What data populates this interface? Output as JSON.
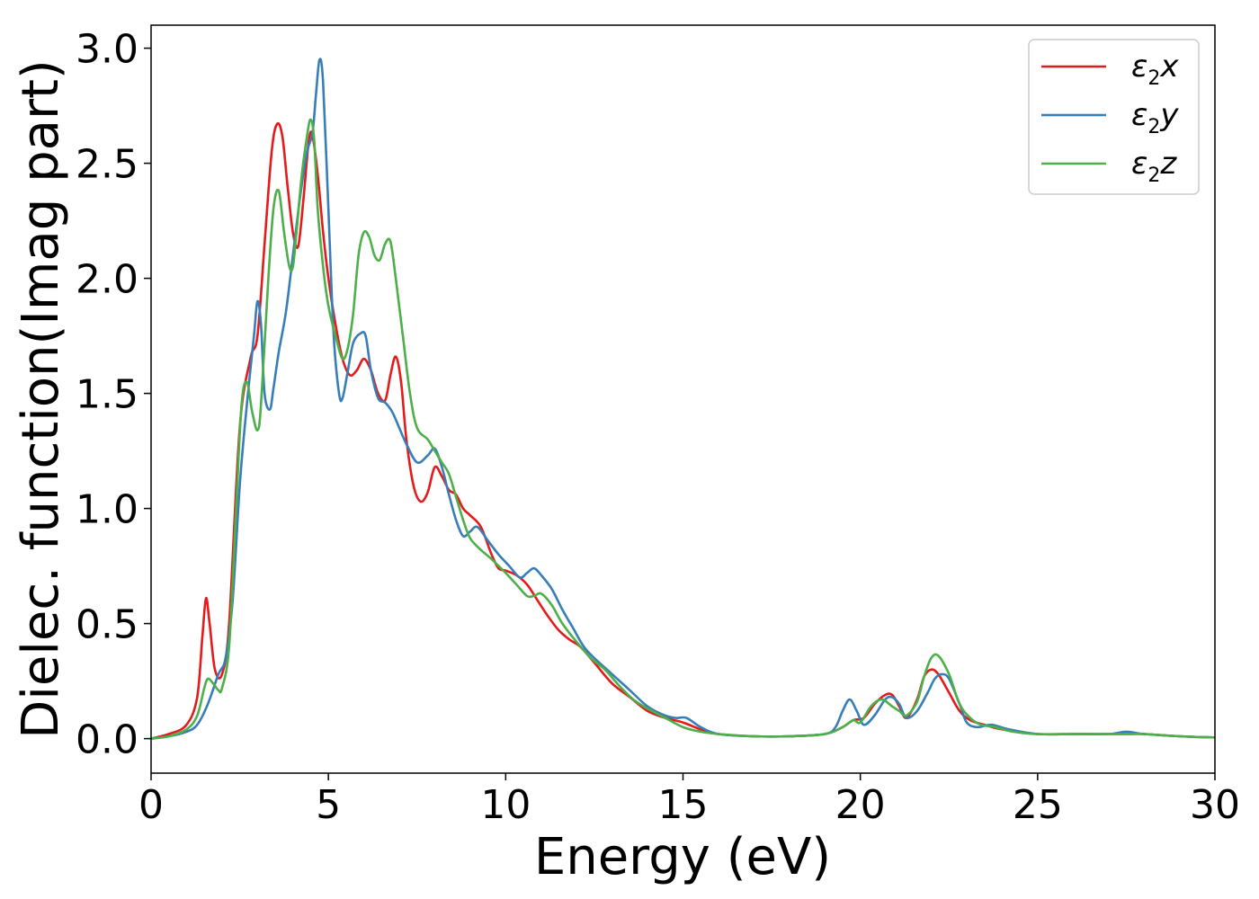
{
  "chart_data": {
    "type": "line",
    "title": "",
    "xlabel": "Energy (eV)",
    "ylabel": "Dielec. function(Imag part)",
    "xlim": [
      0,
      30
    ],
    "ylim": [
      -0.15,
      3.1
    ],
    "xticks": [
      "0",
      "5",
      "10",
      "15",
      "20",
      "25",
      "30"
    ],
    "yticks": [
      "0.0",
      "0.5",
      "1.0",
      "1.5",
      "2.0",
      "2.5",
      "3.0"
    ],
    "grid": false,
    "legend_position": "top-right",
    "series": [
      {
        "name": "ε2x",
        "legend": {
          "base": "ε",
          "sub": "2",
          "suffix": "x"
        },
        "color": "#e41a1c",
        "x": [
          0,
          0.5,
          1.0,
          1.3,
          1.45,
          1.55,
          1.65,
          1.8,
          2.0,
          2.2,
          2.5,
          2.8,
          3.0,
          3.2,
          3.4,
          3.55,
          3.7,
          3.85,
          4.0,
          4.15,
          4.3,
          4.45,
          4.55,
          4.7,
          4.85,
          5.0,
          5.2,
          5.4,
          5.6,
          5.8,
          6.0,
          6.2,
          6.4,
          6.6,
          6.75,
          6.9,
          7.05,
          7.2,
          7.4,
          7.6,
          7.8,
          8.0,
          8.2,
          8.4,
          8.6,
          8.8,
          9.0,
          9.3,
          9.6,
          9.8,
          10.0,
          10.3,
          10.6,
          10.9,
          11.2,
          11.5,
          11.8,
          12.1,
          12.5,
          13.0,
          13.5,
          14.0,
          14.5,
          15.0,
          15.5,
          16.0,
          17.0,
          18.0,
          19.0,
          19.5,
          19.8,
          20.1,
          20.4,
          20.7,
          20.9,
          21.1,
          21.3,
          21.6,
          21.8,
          22.0,
          22.2,
          22.5,
          22.8,
          23.1,
          23.5,
          24.0,
          25.0,
          26.0,
          27.0,
          27.5,
          28.0,
          29.0,
          30.0
        ],
        "values": [
          0.0,
          0.02,
          0.06,
          0.18,
          0.45,
          0.61,
          0.5,
          0.3,
          0.28,
          0.5,
          1.35,
          1.65,
          1.75,
          2.15,
          2.55,
          2.67,
          2.62,
          2.4,
          2.2,
          2.14,
          2.35,
          2.6,
          2.62,
          2.45,
          2.2,
          2.0,
          1.8,
          1.65,
          1.58,
          1.6,
          1.65,
          1.6,
          1.5,
          1.47,
          1.58,
          1.66,
          1.55,
          1.3,
          1.1,
          1.03,
          1.07,
          1.18,
          1.14,
          1.08,
          1.06,
          1.0,
          0.97,
          0.92,
          0.8,
          0.74,
          0.73,
          0.71,
          0.67,
          0.6,
          0.53,
          0.47,
          0.43,
          0.4,
          0.33,
          0.24,
          0.18,
          0.12,
          0.09,
          0.07,
          0.04,
          0.02,
          0.01,
          0.01,
          0.02,
          0.05,
          0.08,
          0.09,
          0.15,
          0.19,
          0.19,
          0.14,
          0.09,
          0.17,
          0.27,
          0.3,
          0.28,
          0.2,
          0.12,
          0.08,
          0.06,
          0.04,
          0.02,
          0.02,
          0.02,
          0.02,
          0.02,
          0.01,
          0.005
        ]
      },
      {
        "name": "ε2y",
        "legend": {
          "base": "ε",
          "sub": "2",
          "suffix": "y"
        },
        "color": "#377eb8",
        "x": [
          0,
          0.5,
          1.0,
          1.3,
          1.6,
          1.9,
          2.1,
          2.3,
          2.5,
          2.7,
          2.9,
          3.0,
          3.1,
          3.2,
          3.35,
          3.45,
          3.6,
          3.8,
          4.0,
          4.2,
          4.4,
          4.55,
          4.65,
          4.75,
          4.85,
          5.0,
          5.15,
          5.3,
          5.4,
          5.55,
          5.7,
          5.9,
          6.05,
          6.2,
          6.4,
          6.6,
          6.8,
          7.0,
          7.2,
          7.5,
          7.8,
          8.0,
          8.2,
          8.4,
          8.6,
          8.8,
          9.0,
          9.2,
          9.5,
          9.8,
          10.1,
          10.4,
          10.6,
          10.8,
          11.0,
          11.3,
          11.6,
          11.9,
          12.2,
          12.5,
          13.0,
          13.5,
          14.0,
          14.5,
          14.8,
          15.1,
          15.5,
          16.0,
          17.0,
          18.0,
          19.0,
          19.3,
          19.5,
          19.7,
          19.9,
          20.1,
          20.4,
          20.7,
          20.9,
          21.1,
          21.3,
          21.6,
          21.9,
          22.1,
          22.3,
          22.5,
          22.8,
          23.0,
          23.3,
          23.7,
          24.2,
          25.0,
          26.0,
          27.0,
          27.5,
          28.0,
          29.0,
          30.0
        ],
        "values": [
          0.0,
          0.01,
          0.03,
          0.06,
          0.15,
          0.28,
          0.35,
          0.6,
          1.1,
          1.45,
          1.75,
          1.9,
          1.8,
          1.5,
          1.43,
          1.52,
          1.68,
          1.85,
          2.1,
          2.35,
          2.55,
          2.63,
          2.8,
          2.95,
          2.85,
          2.3,
          1.75,
          1.5,
          1.48,
          1.6,
          1.72,
          1.76,
          1.75,
          1.6,
          1.48,
          1.46,
          1.42,
          1.35,
          1.28,
          1.2,
          1.23,
          1.26,
          1.18,
          1.06,
          0.95,
          0.88,
          0.9,
          0.92,
          0.86,
          0.8,
          0.75,
          0.7,
          0.72,
          0.74,
          0.71,
          0.65,
          0.56,
          0.48,
          0.4,
          0.35,
          0.28,
          0.21,
          0.14,
          0.1,
          0.09,
          0.09,
          0.05,
          0.02,
          0.01,
          0.01,
          0.02,
          0.05,
          0.12,
          0.17,
          0.12,
          0.06,
          0.1,
          0.17,
          0.18,
          0.15,
          0.09,
          0.12,
          0.2,
          0.26,
          0.28,
          0.26,
          0.15,
          0.07,
          0.05,
          0.06,
          0.04,
          0.02,
          0.02,
          0.02,
          0.03,
          0.02,
          0.01,
          0.005
        ]
      },
      {
        "name": "ε2z",
        "legend": {
          "base": "ε",
          "sub": "2",
          "suffix": "z"
        },
        "color": "#4daf4a",
        "x": [
          0,
          0.5,
          1.0,
          1.3,
          1.5,
          1.6,
          1.75,
          1.9,
          2.0,
          2.2,
          2.4,
          2.55,
          2.7,
          2.85,
          3.0,
          3.1,
          3.3,
          3.45,
          3.6,
          3.75,
          3.9,
          4.0,
          4.1,
          4.25,
          4.4,
          4.5,
          4.6,
          4.7,
          4.85,
          5.0,
          5.2,
          5.4,
          5.55,
          5.7,
          5.85,
          6.0,
          6.15,
          6.3,
          6.45,
          6.6,
          6.75,
          6.9,
          7.1,
          7.3,
          7.5,
          7.8,
          8.0,
          8.2,
          8.4,
          8.6,
          8.8,
          9.0,
          9.3,
          9.6,
          10.0,
          10.3,
          10.6,
          10.8,
          11.0,
          11.3,
          11.6,
          12.0,
          12.4,
          12.8,
          13.2,
          13.6,
          14.0,
          14.5,
          15.0,
          15.5,
          16.0,
          17.0,
          18.0,
          19.0,
          19.5,
          19.8,
          20.0,
          20.3,
          20.6,
          20.9,
          21.1,
          21.3,
          21.6,
          21.8,
          22.0,
          22.2,
          22.5,
          22.8,
          23.1,
          23.4,
          23.8,
          24.3,
          25.0,
          26.0,
          27.0,
          27.5,
          28.0,
          29.0,
          30.0
        ],
        "values": [
          0.0,
          0.01,
          0.04,
          0.1,
          0.22,
          0.26,
          0.24,
          0.21,
          0.22,
          0.4,
          1.0,
          1.45,
          1.55,
          1.42,
          1.34,
          1.45,
          1.98,
          2.3,
          2.38,
          2.2,
          2.05,
          2.05,
          2.2,
          2.45,
          2.62,
          2.69,
          2.6,
          2.3,
          2.05,
          1.88,
          1.75,
          1.65,
          1.7,
          1.85,
          2.1,
          2.2,
          2.18,
          2.1,
          2.08,
          2.15,
          2.16,
          2.0,
          1.75,
          1.5,
          1.35,
          1.3,
          1.25,
          1.2,
          1.15,
          1.05,
          0.95,
          0.87,
          0.82,
          0.78,
          0.72,
          0.67,
          0.62,
          0.62,
          0.63,
          0.58,
          0.5,
          0.42,
          0.35,
          0.3,
          0.23,
          0.17,
          0.13,
          0.09,
          0.05,
          0.03,
          0.02,
          0.01,
          0.01,
          0.02,
          0.05,
          0.08,
          0.07,
          0.14,
          0.17,
          0.14,
          0.12,
          0.1,
          0.16,
          0.27,
          0.35,
          0.36,
          0.28,
          0.15,
          0.09,
          0.06,
          0.05,
          0.03,
          0.02,
          0.02,
          0.02,
          0.02,
          0.02,
          0.01,
          0.005
        ]
      }
    ]
  }
}
